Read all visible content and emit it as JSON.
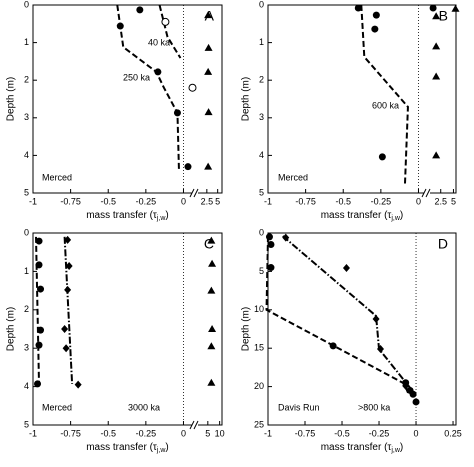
{
  "chart_data": [
    {
      "type": "scatter",
      "panel_label": "A",
      "ylabel": "Depth (m)",
      "xlabel": {
        "text": "mass transfer (τ",
        "sub": "j,w",
        "end": ")"
      },
      "xlim": [
        -1,
        0.07
      ],
      "xticks": [
        -1,
        -0.75,
        -0.5,
        -0.25,
        0
      ],
      "x2lim": [
        0,
        6
      ],
      "x2ticks": [
        2.5,
        5
      ],
      "ylim": [
        0,
        5
      ],
      "yticks": [
        0,
        1,
        2,
        3,
        4,
        5
      ],
      "y_inverted": true,
      "annotations": [
        "40 ka",
        "250 ka",
        "Merced"
      ],
      "series": [
        {
          "marker": "dashed",
          "x": [
            -0.159,
            -0.106,
            -0.02
          ],
          "values": [
            0,
            0.85,
            1.41
          ]
        },
        {
          "marker": "dashed",
          "x": [
            -0.44,
            -0.42,
            -0.4,
            -0.18,
            -0.13,
            -0.04,
            -0.03
          ],
          "values": [
            0,
            0.56,
            1.12,
            1.78,
            2.2,
            2.87,
            4.39
          ]
        },
        {
          "marker": "circle",
          "x": [
            -0.29,
            -0.42,
            -0.17,
            -0.04,
            0.03
          ],
          "values": [
            0.13,
            0.56,
            1.78,
            2.87,
            4.3
          ]
        },
        {
          "marker": "open-circle",
          "x": [
            -0.12,
            0.06
          ],
          "values": [
            0.45,
            2.2
          ]
        },
        {
          "marker": "triangle",
          "axis": "x2",
          "x": [
            2.8,
            2.9,
            2.8,
            2.9,
            2.8
          ],
          "values": [
            0.27,
            1.14,
            1.78,
            2.85,
            4.3
          ]
        }
      ]
    },
    {
      "type": "scatter",
      "panel_label": "B",
      "ylabel": "Depth (m)",
      "xlabel": {
        "text": "mass transfer (τ",
        "sub": "j,w",
        "end": ")"
      },
      "xlim": [
        -1,
        0.05
      ],
      "xticks": [
        -1,
        -0.75,
        -0.5,
        -0.25,
        0
      ],
      "x2lim": [
        0,
        5.5
      ],
      "x2ticks": [
        2.5,
        5
      ],
      "ylim": [
        0,
        5
      ],
      "yticks": [
        0,
        1,
        2,
        3,
        4,
        5
      ],
      "y_inverted": true,
      "annotations": [
        "600 ka",
        "Merced"
      ],
      "series": [
        {
          "marker": "dashed",
          "x": [
            -0.38,
            -0.36,
            -0.07,
            -0.09
          ],
          "values": [
            0,
            1.38,
            2.71,
            4.79
          ]
        },
        {
          "marker": "circle",
          "x": [
            -0.4,
            -0.28,
            -0.29,
            -0.24
          ],
          "values": [
            0.08,
            0.27,
            0.64,
            4.04
          ]
        },
        {
          "marker": "circle",
          "axis": "x2",
          "x": [
            1
          ],
          "values": [
            0.08
          ]
        },
        {
          "marker": "triangle",
          "axis": "x2",
          "x": [
            1.6,
            5.4,
            1.6,
            1.6,
            1.6
          ],
          "values": [
            0.3,
            0.1,
            1.1,
            1.9,
            4
          ]
        }
      ]
    },
    {
      "type": "scatter",
      "panel_label": "C",
      "ylabel": "Depth (m)",
      "xlabel": {
        "text": "mass transfer (τ",
        "sub": "j,w",
        "end": ")"
      },
      "xlim": [
        -1,
        0.07
      ],
      "xticks": [
        -1,
        -0.75,
        -0.5,
        -0.25,
        0
      ],
      "x2lim": [
        0,
        11
      ],
      "x2ticks": [
        5,
        10
      ],
      "ylim": [
        0,
        5
      ],
      "yticks": [
        0,
        1,
        2,
        3,
        4,
        5
      ],
      "y_inverted": true,
      "annotations": [
        "Merced",
        "3000 ka"
      ],
      "series": [
        {
          "marker": "dashed",
          "x": [
            -0.98,
            -0.96
          ],
          "values": [
            0.1,
            3.93
          ]
        },
        {
          "marker": "dashdot",
          "x": [
            -0.79,
            -0.74
          ],
          "values": [
            0.1,
            3.93
          ]
        },
        {
          "marker": "circle",
          "x": [
            -0.96,
            -0.96,
            -0.95,
            -0.95,
            -0.96,
            -0.97
          ],
          "values": [
            0.21,
            0.83,
            1.46,
            2.53,
            2.92,
            3.93
          ]
        },
        {
          "marker": "diamond",
          "x": [
            -0.77,
            -0.76,
            -0.77,
            -0.79,
            -0.78,
            -0.7
          ],
          "values": [
            0.18,
            0.86,
            1.48,
            2.5,
            3.0,
            3.95
          ]
        },
        {
          "marker": "triangle",
          "axis": "x2",
          "x": [
            6.5,
            6.8,
            6.5,
            6.8,
            6.5,
            6.5
          ],
          "values": [
            0.2,
            0.8,
            1.5,
            2.5,
            2.95,
            3.9
          ]
        }
      ]
    },
    {
      "type": "scatter",
      "panel_label": "D",
      "ylabel": "Depth (m)",
      "xlabel": {
        "text": "mass transfer (τ",
        "sub": "j,w",
        "end": ")"
      },
      "xlim": [
        -1,
        0.27
      ],
      "xticks": [
        -1,
        -0.75,
        -0.5,
        -0.25,
        0,
        0.25
      ],
      "ylim": [
        0,
        25
      ],
      "yticks": [
        0,
        5,
        10,
        15,
        20,
        25
      ],
      "y_inverted": true,
      "annotations": [
        "Davis Run",
        ">800 ka"
      ],
      "series": [
        {
          "marker": "dashed",
          "x": [
            -1,
            -1.01,
            -0.08,
            -0.05
          ],
          "values": [
            0.4,
            10,
            19.6,
            21
          ]
        },
        {
          "marker": "dashdot",
          "x": [
            -0.9,
            -0.27,
            -0.25,
            -0.03
          ],
          "values": [
            0.4,
            10.8,
            15.1,
            20.4
          ]
        },
        {
          "marker": "circle",
          "x": [
            -0.99,
            -0.98,
            -0.98,
            -0.56,
            -0.07,
            -0.04,
            -0.02,
            0
          ],
          "values": [
            0.5,
            1.5,
            4.5,
            14.7,
            19.5,
            20.5,
            21,
            22
          ]
        },
        {
          "marker": "diamond",
          "x": [
            -0.88,
            -0.47,
            -0.27,
            -0.24,
            -0.07
          ],
          "values": [
            0.6,
            4.56,
            11.2,
            15.1,
            19.9
          ]
        }
      ]
    }
  ]
}
